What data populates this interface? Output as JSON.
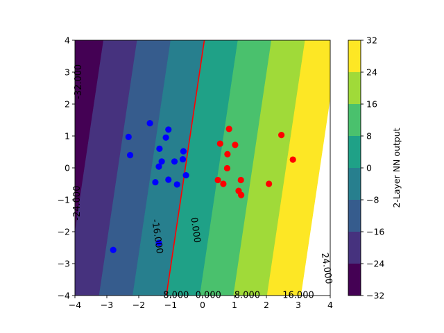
{
  "chart_data": {
    "type": "contour",
    "colorbar_label": "2-Layer NN output",
    "xlim": [
      -4,
      4
    ],
    "ylim": [
      -4,
      4
    ],
    "x_ticks": [
      "−4",
      "−3",
      "−2",
      "−1",
      "0",
      "1",
      "2",
      "3",
      "4"
    ],
    "y_ticks": [
      "−4",
      "−3",
      "−2",
      "−1",
      "0",
      "1",
      "2",
      "3",
      "4"
    ],
    "levels": [
      -32,
      -24,
      -16,
      -8,
      0,
      8,
      16,
      24,
      32
    ],
    "colorbar_ticks": [
      "−32",
      "−24",
      "−16",
      "−8",
      "0",
      "8",
      "16",
      "24",
      "32"
    ],
    "level_colors": [
      "#440154",
      "#46327e",
      "#365c8d",
      "#277f8e",
      "#1fa187",
      "#4ac16d",
      "#a0da39",
      "#fde725"
    ],
    "surface": {
      "a": 7.6,
      "b": -1.13,
      "c": 4.1
    },
    "decision_boundary": {
      "level": 0,
      "color": "#ff0000"
    },
    "contour_labels": [
      {
        "text": "-32.000",
        "x": -3.88,
        "y": 2.7,
        "rotation": 90
      },
      {
        "text": "-24.000",
        "x": -3.92,
        "y": -1.1,
        "rotation": 90
      },
      {
        "text": "-16.000",
        "x": -1.43,
        "y": -2.15,
        "rotation": -82
      },
      {
        "text": "0.000",
        "x": -0.23,
        "y": -1.95,
        "rotation": -82,
        "color": "#c81414"
      },
      {
        "text": "24.000",
        "x": 3.88,
        "y": -3.15,
        "rotation": -82
      },
      {
        "text": "-8.000",
        "x": -0.88,
        "y": -4.0,
        "rotation": 0
      },
      {
        "text": "0.000",
        "x": 0.18,
        "y": -4.0,
        "rotation": 0
      },
      {
        "text": "8.000",
        "x": 1.4,
        "y": -4.0,
        "rotation": 0
      },
      {
        "text": "16.000",
        "x": 3.0,
        "y": -4.0,
        "rotation": 0
      }
    ],
    "series": [
      {
        "color": "#0000ff",
        "points": [
          [
            -1.65,
            1.4
          ],
          [
            -2.32,
            0.97
          ],
          [
            -2.27,
            0.4
          ],
          [
            -1.07,
            1.2
          ],
          [
            -1.15,
            0.95
          ],
          [
            -1.35,
            0.6
          ],
          [
            -0.6,
            0.52
          ],
          [
            -1.28,
            0.2
          ],
          [
            -0.62,
            0.27
          ],
          [
            -0.88,
            0.2
          ],
          [
            -1.37,
            0.04
          ],
          [
            -0.52,
            -0.23
          ],
          [
            -1.48,
            -0.45
          ],
          [
            -1.07,
            -0.37
          ],
          [
            -0.8,
            -0.52
          ],
          [
            -2.8,
            -2.57
          ],
          [
            -1.37,
            -2.35
          ]
        ]
      },
      {
        "color": "#ff0000",
        "points": [
          [
            0.83,
            1.22
          ],
          [
            2.47,
            1.03
          ],
          [
            0.55,
            0.76
          ],
          [
            1.02,
            0.72
          ],
          [
            0.78,
            0.43
          ],
          [
            2.83,
            0.26
          ],
          [
            0.77,
            -0.01
          ],
          [
            0.48,
            -0.38
          ],
          [
            1.2,
            -0.38
          ],
          [
            0.65,
            -0.5
          ],
          [
            2.08,
            -0.5
          ],
          [
            1.13,
            -0.72
          ],
          [
            1.21,
            -0.85
          ]
        ]
      }
    ]
  }
}
